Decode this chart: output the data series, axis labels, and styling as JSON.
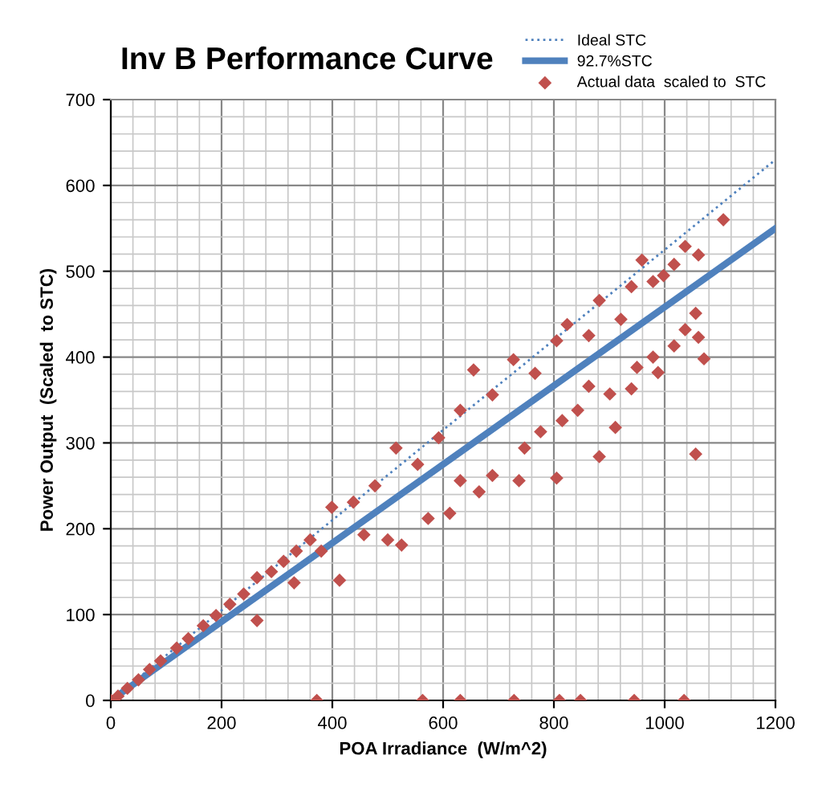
{
  "chart_data": {
    "type": "scatter",
    "title": "Inv B Performance Curve",
    "xlabel": "POA Irradiance  (W/m^2)",
    "ylabel": "Power Output  (Scaled  to STC)",
    "xlim": [
      0,
      1200
    ],
    "ylim": [
      0,
      700
    ],
    "xticks": [
      0,
      200,
      400,
      600,
      800,
      1000,
      1200
    ],
    "yticks": [
      0,
      100,
      200,
      300,
      400,
      500,
      600,
      700
    ],
    "grid": true,
    "legend": "top right",
    "series": [
      {
        "name": "Ideal STC",
        "type": "line",
        "line_style": "dotted",
        "color": "#4f81bd",
        "x": [
          0,
          1200
        ],
        "values": [
          0,
          630
        ]
      },
      {
        "name": "92.7%STC",
        "type": "line",
        "line_style": "solid",
        "color": "#4f81bd",
        "x": [
          0,
          1200
        ],
        "values": [
          0,
          550
        ]
      },
      {
        "name": "Actual data  scaled to  STC",
        "marker": "diamond",
        "color": "#c0504d",
        "x": [
          0,
          13,
          30,
          50,
          70,
          90,
          119,
          140,
          167,
          190,
          215,
          240,
          264,
          290,
          312,
          335,
          360,
          399,
          438,
          477,
          515,
          554,
          592,
          631,
          655,
          689,
          727,
          766,
          805,
          824,
          863,
          882,
          921,
          940,
          959,
          979,
          998,
          1017,
          1037,
          1061,
          1106,
          264,
          331,
          380,
          413,
          457,
          500,
          525,
          573,
          612,
          631,
          665,
          689,
          737,
          747,
          776,
          805,
          815,
          843,
          863,
          882,
          901,
          911,
          940,
          950,
          979,
          988,
          1017,
          1037,
          1056,
          1061,
          1071,
          1056,
          372,
          563,
          631,
          728,
          810,
          848,
          945,
          1035
        ],
        "values": [
          0,
          5,
          14,
          24,
          36,
          46,
          61,
          72,
          87,
          99,
          112,
          124,
          143,
          150,
          162,
          174,
          187,
          225,
          231,
          250,
          294,
          275,
          306,
          338,
          385,
          356,
          397,
          381,
          419,
          438,
          425,
          466,
          444,
          482,
          513,
          488,
          495,
          508,
          529,
          519,
          560,
          93,
          137,
          174,
          140,
          193,
          187,
          181,
          212,
          218,
          256,
          243,
          262,
          256,
          294,
          313,
          259,
          326,
          338,
          366,
          284,
          357,
          318,
          363,
          388,
          400,
          382,
          413,
          432,
          451,
          423,
          398,
          287,
          0,
          0,
          0,
          0,
          0,
          0,
          0,
          0
        ]
      }
    ]
  }
}
